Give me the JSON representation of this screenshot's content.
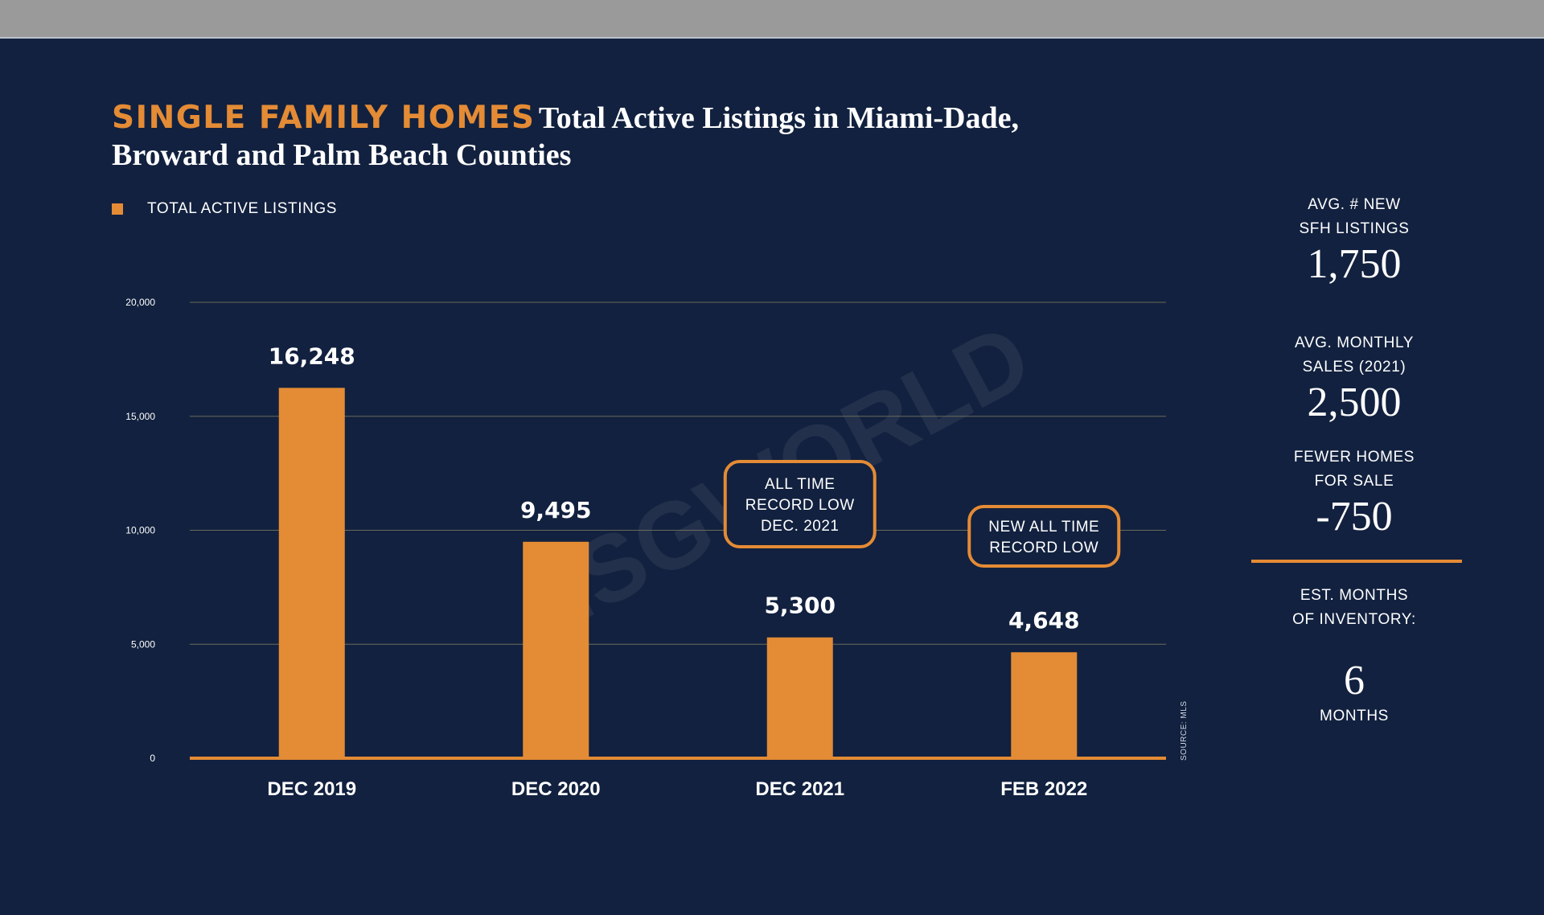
{
  "title": {
    "accent": "SINGLE FAMILY HOMES",
    "line1": "Total Active Listings in Miami-Dade,",
    "line2": "Broward and Palm Beach Counties"
  },
  "legend": {
    "label": "TOTAL ACTIVE LISTINGS"
  },
  "source": "SOURCE: MLS",
  "watermark": "ISGWORLD",
  "colors": {
    "background": "#12213f",
    "accent": "#e48b35",
    "text": "#ffffff",
    "grid": "#6b6a5a"
  },
  "chart_data": {
    "type": "bar",
    "title": "Total Active Listings in Miami-Dade, Broward and Palm Beach Counties",
    "categories": [
      "DEC 2019",
      "DEC 2020",
      "DEC 2021",
      "FEB 2022"
    ],
    "values": [
      16248,
      9495,
      5300,
      4648
    ],
    "data_labels": [
      "16,248",
      "9,495",
      "5,300",
      "4,648"
    ],
    "ylim": [
      0,
      20000
    ],
    "yticks": [
      0,
      5000,
      10000,
      15000,
      20000
    ],
    "ytick_labels": [
      "0",
      "5,000",
      "10,000",
      "15,000",
      "20,000"
    ],
    "legend": [
      "TOTAL ACTIVE LISTINGS"
    ],
    "annotations": [
      {
        "category": "DEC 2021",
        "lines": [
          "ALL TIME",
          "RECORD LOW",
          "DEC. 2021"
        ]
      },
      {
        "category": "FEB 2022",
        "lines": [
          "NEW ALL TIME",
          "RECORD LOW"
        ]
      }
    ]
  },
  "sidebar": {
    "new_listings": {
      "label1": "AVG. # NEW",
      "label2": "SFH LISTINGS",
      "value": "1,750"
    },
    "monthly_sales": {
      "label1": "AVG. MONTHLY",
      "label2": "SALES (2021)",
      "value": "2,500"
    },
    "fewer_homes": {
      "label1": "FEWER HOMES",
      "label2": "FOR SALE",
      "value": "-750"
    },
    "inventory": {
      "label1": "EST. MONTHS",
      "label2": "OF INVENTORY:",
      "value": "6",
      "unit": "MONTHS"
    }
  }
}
